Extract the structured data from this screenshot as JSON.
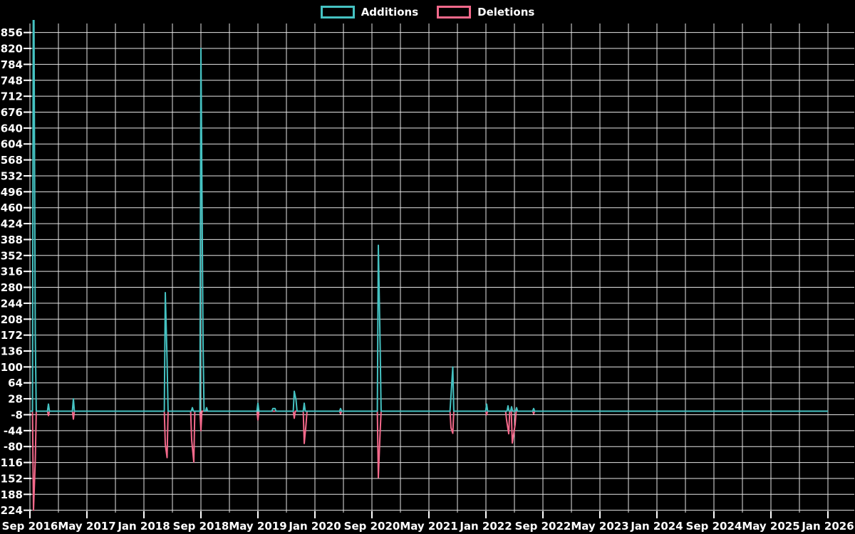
{
  "legend": {
    "items": [
      {
        "label": "Additions",
        "color": "#45c2c2"
      },
      {
        "label": "Deletions",
        "color": "#f4698b"
      }
    ]
  },
  "chart_data": {
    "type": "line",
    "title": "",
    "xlabel": "",
    "ylabel": "",
    "legend_position": "top-center",
    "grid": true,
    "background_color": "#000000",
    "gridline_color": "#e6e6e6",
    "text_color": "#ffffff",
    "x_axis": {
      "unit": "months since first tick",
      "range_months": 112,
      "tick_step_months": 8,
      "gridline_step_months": 4,
      "tick_labels": [
        "Sep 2016",
        "May 2017",
        "Jan 2018",
        "Sep 2018",
        "May 2019",
        "Jan 2020",
        "Sep 2020",
        "May 2021",
        "Jan 2022",
        "Sep 2022",
        "May 2023",
        "Jan 2024",
        "Sep 2024",
        "May 2025",
        "Jan 2026"
      ]
    },
    "y_axis": {
      "ticks": [
        856,
        820,
        784,
        748,
        712,
        676,
        640,
        604,
        568,
        532,
        496,
        460,
        424,
        388,
        352,
        316,
        280,
        244,
        208,
        172,
        136,
        100,
        64,
        28,
        -8,
        -44,
        -80,
        -116,
        -152,
        -188,
        -224
      ],
      "visible_range": [
        -233,
        885
      ]
    },
    "notes": "Weekly additions/deletions; flat at 0 between spikes through Jan 2026; first Additions spike exceeds top of plot (clipped).",
    "series": [
      {
        "name": "Additions",
        "color": "#45c2c2",
        "points": [
          [
            0.5,
            1150
          ],
          [
            0.75,
            170
          ],
          [
            2.6,
            16
          ],
          [
            6.1,
            28
          ],
          [
            19.0,
            268
          ],
          [
            19.25,
            115
          ],
          [
            22.8,
            8
          ],
          [
            24.0,
            820
          ],
          [
            24.3,
            150
          ],
          [
            24.8,
            8
          ],
          [
            32.0,
            18
          ],
          [
            34.1,
            6
          ],
          [
            34.4,
            6
          ],
          [
            37.1,
            45
          ],
          [
            37.35,
            25
          ],
          [
            38.5,
            18
          ],
          [
            43.6,
            6
          ],
          [
            48.9,
            375
          ],
          [
            49.15,
            150
          ],
          [
            59.1,
            35
          ],
          [
            59.35,
            100
          ],
          [
            64.1,
            16
          ],
          [
            67.1,
            12
          ],
          [
            67.6,
            10
          ],
          [
            68.3,
            8
          ],
          [
            70.7,
            6
          ]
        ]
      },
      {
        "name": "Deletions",
        "color": "#f4698b",
        "points": [
          [
            0.5,
            -224
          ],
          [
            0.75,
            -112
          ],
          [
            2.6,
            -10
          ],
          [
            6.1,
            -18
          ],
          [
            19.0,
            -75
          ],
          [
            19.25,
            -105
          ],
          [
            22.7,
            -65
          ],
          [
            23.0,
            -115
          ],
          [
            24.0,
            -44
          ],
          [
            32.0,
            -20
          ],
          [
            37.1,
            -16
          ],
          [
            38.5,
            -73
          ],
          [
            38.75,
            -30
          ],
          [
            43.6,
            -6
          ],
          [
            48.9,
            -150
          ],
          [
            49.15,
            -47
          ],
          [
            59.1,
            -38
          ],
          [
            59.35,
            -50
          ],
          [
            64.1,
            -8
          ],
          [
            66.9,
            -20
          ],
          [
            67.2,
            -51
          ],
          [
            67.7,
            -72
          ],
          [
            68.1,
            -30
          ],
          [
            70.7,
            -6
          ]
        ]
      }
    ]
  }
}
